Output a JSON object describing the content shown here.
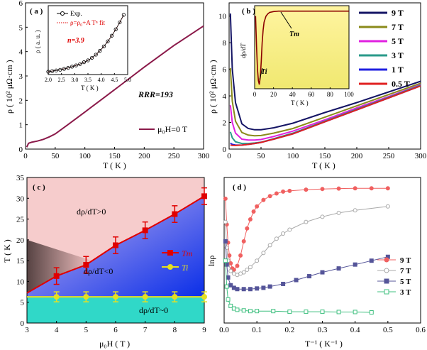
{
  "chart_data": [
    {
      "panel": "(a)",
      "type": "line",
      "xlabel": "T ( K )",
      "ylabel": "ρ ( 10² μΩ·cm )",
      "xlim": [
        0,
        300
      ],
      "ylim": [
        0,
        6
      ],
      "xticks": [
        "0",
        "50",
        "100",
        "150",
        "200",
        "250",
        "300"
      ],
      "yticks": [
        "0",
        "1",
        "2",
        "3",
        "4",
        "5",
        "6"
      ],
      "series": [
        {
          "name": "μ0H=0 T",
          "color": "#8b1a4a",
          "x": [
            2,
            5,
            10,
            20,
            30,
            40,
            50,
            70,
            100,
            130,
            160,
            200,
            250,
            300
          ],
          "y": [
            0.08,
            0.24,
            0.28,
            0.33,
            0.4,
            0.5,
            0.62,
            0.98,
            1.52,
            2.07,
            2.62,
            3.36,
            4.25,
            5.05
          ]
        }
      ],
      "annotations": {
        "rrr": "RRR=193",
        "legend": "μ₀H=0 T"
      },
      "inset": {
        "xlabel": "T ( K )",
        "ylabel": "ρ ( a. u. )",
        "xlim": [
          2.0,
          5.0
        ],
        "ylim": [
          0,
          1
        ],
        "xticks": [
          "2.0",
          "2.5",
          "3.0",
          "3.5",
          "4.0",
          "4.5",
          "5.0"
        ],
        "legend_exp": "Exp.",
        "legend_fit": "ρ=ρ₀+A Tⁿ fit",
        "n_label": "n=3.9",
        "exp_x": [
          2.0,
          2.15,
          2.3,
          2.45,
          2.6,
          2.75,
          2.9,
          3.05,
          3.2,
          3.35,
          3.5,
          3.65,
          3.8,
          3.95,
          4.1,
          4.25,
          4.4,
          4.55,
          4.7,
          4.85
        ],
        "exp_y": [
          0.0,
          0.01,
          0.02,
          0.03,
          0.045,
          0.06,
          0.08,
          0.1,
          0.12,
          0.15,
          0.18,
          0.22,
          0.27,
          0.33,
          0.4,
          0.48,
          0.57,
          0.67,
          0.78,
          0.9
        ]
      }
    },
    {
      "panel": "(b)",
      "type": "line",
      "xlabel": "T ( K )",
      "ylabel": "ρ ( 10² μΩ·cm )",
      "xlim": [
        0,
        300
      ],
      "ylim": [
        0,
        11
      ],
      "xticks": [
        "0",
        "50",
        "100",
        "150",
        "200",
        "250",
        "300"
      ],
      "yticks": [
        "0",
        "2",
        "4",
        "6",
        "8",
        "10"
      ],
      "series": [
        {
          "name": "9 T",
          "color": "#141464",
          "x": [
            2,
            5,
            10,
            20,
            30,
            40,
            50,
            70,
            100,
            150,
            200,
            250,
            300
          ],
          "y": [
            10.2,
            6.0,
            3.5,
            1.9,
            1.55,
            1.45,
            1.45,
            1.6,
            1.95,
            2.75,
            3.5,
            4.3,
            5.1
          ]
        },
        {
          "name": "7 T",
          "color": "#8a8a1a",
          "x": [
            2,
            5,
            10,
            20,
            30,
            40,
            50,
            70,
            100,
            150,
            200,
            250,
            300
          ],
          "y": [
            6.1,
            3.6,
            2.1,
            1.25,
            1.05,
            1.0,
            1.02,
            1.2,
            1.55,
            2.4,
            3.25,
            4.1,
            4.95
          ]
        },
        {
          "name": "5 T",
          "color": "#e020e0",
          "x": [
            2,
            5,
            10,
            20,
            30,
            40,
            50,
            70,
            100,
            150,
            200,
            250,
            300
          ],
          "y": [
            3.3,
            2.0,
            1.2,
            0.75,
            0.68,
            0.68,
            0.72,
            0.95,
            1.35,
            2.2,
            3.1,
            3.95,
            4.85
          ]
        },
        {
          "name": "3 T",
          "color": "#2a9a8a",
          "x": [
            2,
            5,
            10,
            20,
            30,
            40,
            50,
            70,
            100,
            150,
            200,
            250,
            300
          ],
          "y": [
            1.3,
            0.85,
            0.55,
            0.42,
            0.42,
            0.46,
            0.52,
            0.78,
            1.2,
            2.1,
            3.0,
            3.9,
            4.8
          ]
        },
        {
          "name": "1 T",
          "color": "#2020e0",
          "x": [
            2,
            5,
            10,
            20,
            30,
            40,
            50,
            70,
            100,
            150,
            200,
            250,
            300
          ],
          "y": [
            0.45,
            0.35,
            0.3,
            0.3,
            0.35,
            0.42,
            0.5,
            0.75,
            1.15,
            2.05,
            2.95,
            3.85,
            4.75
          ]
        },
        {
          "name": "0.5 T",
          "color": "#e02020",
          "x": [
            2,
            5,
            10,
            20,
            30,
            40,
            50,
            70,
            100,
            150,
            200,
            250,
            300
          ],
          "y": [
            0.3,
            0.28,
            0.27,
            0.3,
            0.35,
            0.42,
            0.5,
            0.75,
            1.15,
            2.05,
            2.95,
            3.85,
            4.75
          ]
        }
      ],
      "inset": {
        "xlabel": "T ( K )",
        "ylabel": "dρ/dT",
        "xlim": [
          0,
          100
        ],
        "xticks": [
          "0",
          "20",
          "40",
          "60",
          "80",
          "100"
        ],
        "tm_label": "Tm",
        "ti_label": "Ti",
        "x": [
          1,
          2,
          3,
          4,
          5,
          6,
          7,
          8,
          9,
          10,
          12,
          14,
          16,
          20,
          25,
          30,
          40,
          60,
          80,
          100
        ],
        "y": [
          0.9,
          0.5,
          0.2,
          0.05,
          0.0,
          0.1,
          0.3,
          0.55,
          0.72,
          0.82,
          0.9,
          0.93,
          0.95,
          0.96,
          0.965,
          0.965,
          0.965,
          0.965,
          0.965,
          0.965
        ]
      }
    },
    {
      "panel": "(c)",
      "type": "line",
      "xlabel": "μ₀H ( T )",
      "ylabel": "T ( K )",
      "xlim": [
        3,
        9
      ],
      "ylim": [
        0,
        35
      ],
      "xticks": [
        "3",
        "4",
        "5",
        "6",
        "7",
        "8",
        "9"
      ],
      "yticks": [
        "0",
        "5",
        "10",
        "15",
        "20",
        "25",
        "30",
        "35"
      ],
      "regions": [
        "dρ/dT>0",
        "dρ/dT<0",
        "dρ/dT~0"
      ],
      "series": [
        {
          "name": "Tm",
          "color": "#e00000",
          "x": [
            4,
            5,
            6,
            7,
            8,
            9
          ],
          "y": [
            11.3,
            14.0,
            18.7,
            22.3,
            26.2,
            30.5
          ],
          "err": [
            2,
            2,
            2,
            2,
            2,
            2
          ]
        },
        {
          "name": "Ti",
          "color": "#e6e020",
          "x": [
            4,
            5,
            6,
            7,
            8,
            9
          ],
          "y": [
            6.3,
            6.3,
            6.3,
            6.3,
            6.3,
            6.3
          ],
          "err": [
            1.2,
            1.2,
            1.2,
            1.2,
            1.2,
            1.2
          ]
        }
      ],
      "legend": [
        "Tm",
        "Ti"
      ]
    },
    {
      "panel": "(d)",
      "type": "scatter",
      "xlabel": "T⁻¹ ( K⁻¹ )",
      "ylabel": "lnρ",
      "xlim": [
        0.0,
        0.6
      ],
      "xticks": [
        "0.0",
        "0.1",
        "0.2",
        "0.3",
        "0.4",
        "0.5",
        "0.6"
      ],
      "series": [
        {
          "name": "9 T",
          "color": "#f06060",
          "marker": "circle",
          "x": [
            0.004,
            0.008,
            0.012,
            0.016,
            0.02,
            0.025,
            0.03,
            0.04,
            0.05,
            0.06,
            0.07,
            0.08,
            0.09,
            0.1,
            0.12,
            0.14,
            0.16,
            0.18,
            0.2,
            0.25,
            0.3,
            0.35,
            0.4,
            0.45,
            0.5
          ],
          "y": [
            0.88,
            0.68,
            0.54,
            0.44,
            0.38,
            0.34,
            0.33,
            0.36,
            0.44,
            0.55,
            0.65,
            0.72,
            0.78,
            0.82,
            0.87,
            0.9,
            0.92,
            0.935,
            0.94,
            0.95,
            0.955,
            0.958,
            0.96,
            0.96,
            0.96
          ]
        },
        {
          "name": "7 T",
          "color": "#a8a8a8",
          "marker": "circle-open",
          "x": [
            0.004,
            0.008,
            0.012,
            0.02,
            0.03,
            0.04,
            0.05,
            0.06,
            0.07,
            0.08,
            0.1,
            0.12,
            0.14,
            0.16,
            0.18,
            0.2,
            0.25,
            0.3,
            0.35,
            0.4,
            0.5
          ],
          "y": [
            0.7,
            0.5,
            0.4,
            0.32,
            0.3,
            0.29,
            0.3,
            0.31,
            0.33,
            0.35,
            0.4,
            0.46,
            0.52,
            0.57,
            0.61,
            0.64,
            0.7,
            0.74,
            0.77,
            0.79,
            0.82
          ]
        },
        {
          "name": "5 T",
          "color": "#555599",
          "marker": "square",
          "x": [
            0.004,
            0.008,
            0.012,
            0.02,
            0.03,
            0.04,
            0.06,
            0.08,
            0.1,
            0.12,
            0.14,
            0.18,
            0.22,
            0.26,
            0.3,
            0.35,
            0.4,
            0.45,
            0.5
          ],
          "y": [
            0.55,
            0.37,
            0.27,
            0.21,
            0.19,
            0.18,
            0.18,
            0.18,
            0.185,
            0.19,
            0.2,
            0.22,
            0.25,
            0.28,
            0.31,
            0.34,
            0.37,
            0.4,
            0.43
          ]
        },
        {
          "name": "3 T",
          "color": "#40c080",
          "marker": "square-open",
          "x": [
            0.004,
            0.008,
            0.012,
            0.02,
            0.03,
            0.04,
            0.06,
            0.08,
            0.1,
            0.15,
            0.2,
            0.25,
            0.3,
            0.35,
            0.4,
            0.45
          ],
          "y": [
            0.4,
            0.2,
            0.1,
            0.05,
            0.03,
            0.02,
            0.015,
            0.01,
            0.01,
            0.01,
            0.005,
            0.005,
            0.005,
            0.003,
            0.003,
            0.0
          ]
        }
      ]
    }
  ]
}
